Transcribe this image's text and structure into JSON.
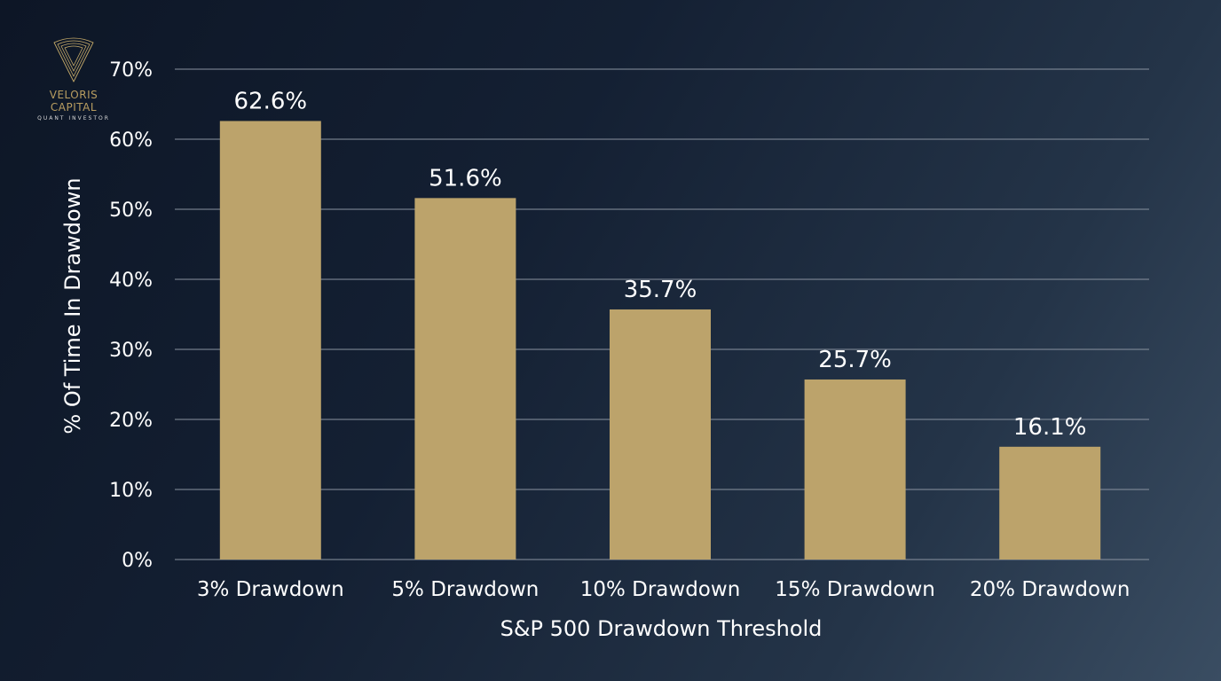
{
  "logo": {
    "name": "VELORIS CAPITAL",
    "tagline": "QUANT INVESTOR"
  },
  "colors": {
    "bar": "#bca36b",
    "grid": "#8a93a0",
    "text": "#ffffff"
  },
  "chart_data": {
    "type": "bar",
    "categories": [
      "3% Drawdown",
      "5% Drawdown",
      "10% Drawdown",
      "15% Drawdown",
      "20% Drawdown"
    ],
    "values": [
      62.6,
      51.6,
      35.7,
      25.7,
      16.1
    ],
    "data_labels": [
      "62.6%",
      "51.6%",
      "35.7%",
      "25.7%",
      "16.1%"
    ],
    "title": "",
    "xlabel": "S&P 500 Drawdown Threshold",
    "ylabel": "% Of Time In Drawdown",
    "ylim": [
      0,
      70
    ],
    "yticks": [
      0,
      10,
      20,
      30,
      40,
      50,
      60,
      70
    ],
    "ytick_labels": [
      "0%",
      "10%",
      "20%",
      "30%",
      "40%",
      "50%",
      "60%",
      "70%"
    ],
    "grid": true
  }
}
